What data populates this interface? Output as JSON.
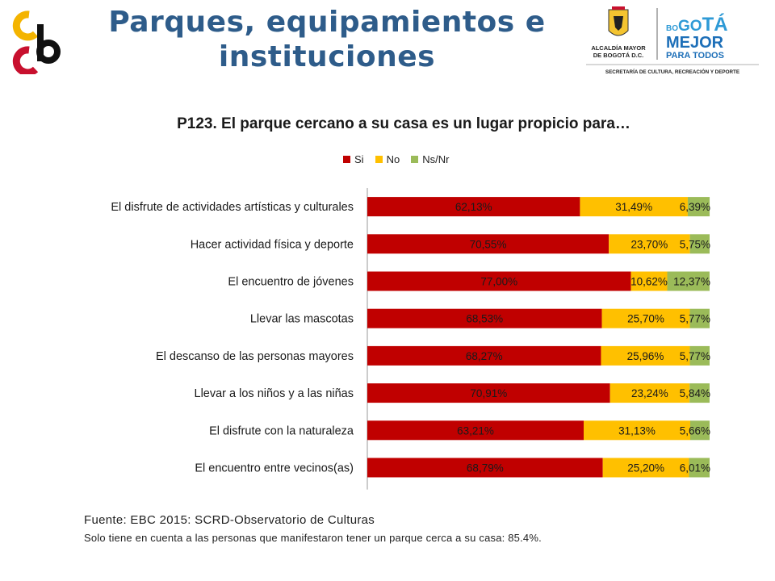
{
  "header": {
    "title_line1": "Parques, equipamientos e",
    "title_line2": "instituciones",
    "title_color": "#2e5c8a"
  },
  "logo_right": {
    "org_line1": "ALCALDÍA MAYOR",
    "org_line2": "DE BOGOTÁ D.C.",
    "brand_bo": "BO",
    "brand_go": "GO",
    "brand_ta": "TÁ",
    "brand_line2": "MEJOR",
    "brand_line3": "PARA TODOS",
    "secretaria": "SECRETARÍA DE CULTURA, RECREACIÓN Y DEPORTE"
  },
  "chart_data": {
    "type": "bar",
    "orientation": "horizontal",
    "stacked": true,
    "title": "P123. El parque cercano a su casa es un lugar propicio para…",
    "legend_position": "top",
    "categories": [
      "El disfrute de actividades artísticas y culturales",
      "Hacer actividad física y deporte",
      "El encuentro de jóvenes",
      "Llevar las mascotas",
      "El descanso de las personas mayores",
      "Llevar a los niños y a las niñas",
      "El disfrute con la naturaleza",
      "El encuentro entre vecinos(as)"
    ],
    "series": [
      {
        "name": "Si",
        "color": "#c00000",
        "values": [
          62.13,
          70.55,
          77.0,
          68.53,
          68.27,
          70.91,
          63.21,
          68.79
        ],
        "labels": [
          "62,13%",
          "70,55%",
          "77,00%",
          "68,53%",
          "68,27%",
          "70,91%",
          "63,21%",
          "68,79%"
        ]
      },
      {
        "name": "No",
        "color": "#ffc000",
        "values": [
          31.49,
          23.7,
          10.62,
          25.7,
          25.96,
          23.24,
          31.13,
          25.2
        ],
        "labels": [
          "31,49%",
          "23,70%",
          "10,62%",
          "25,70%",
          "25,96%",
          "23,24%",
          "31,13%",
          "25,20%"
        ]
      },
      {
        "name": "Ns/Nr",
        "color": "#9bbb59",
        "values": [
          6.39,
          5.75,
          12.37,
          5.77,
          5.77,
          5.84,
          5.66,
          6.01
        ],
        "labels": [
          "6,39%",
          "5,75%",
          "12,37%",
          "5,77%",
          "5,77%",
          "5,84%",
          "5,66%",
          "6,01%"
        ]
      }
    ],
    "xlim": [
      0,
      100
    ]
  },
  "footer": {
    "source": "Fuente: EBC 2015: SCRD-Observatorio de Culturas",
    "note": "Solo tiene en cuenta a las personas que manifestaron tener un parque cerca a su casa: 85.4%."
  }
}
